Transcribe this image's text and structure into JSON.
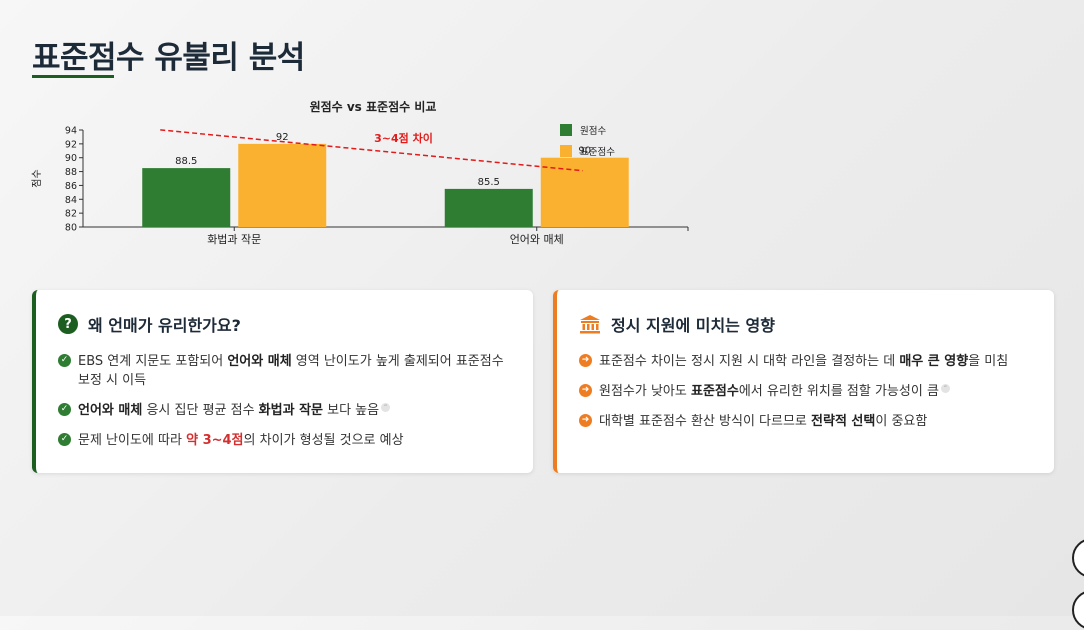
{
  "page": {
    "title": "표준점수 유불리 분석"
  },
  "chart_data": {
    "type": "bar",
    "title": "원점수 vs 표준점수 비교",
    "ylabel": "점수",
    "xlabel": "",
    "categories": [
      "화법과 작문",
      "언어와 매체"
    ],
    "series": [
      {
        "name": "원점수",
        "values": [
          88.5,
          85.5
        ],
        "color": "#2e7d32"
      },
      {
        "name": "표준점수",
        "values": [
          92,
          90
        ],
        "color": "#fbb130"
      }
    ],
    "ylim": [
      80,
      94
    ],
    "yticks": [
      80,
      82,
      84,
      86,
      88,
      90,
      92,
      94
    ],
    "value_labels": [
      "88.5",
      "92",
      "85.5",
      "90"
    ],
    "annotation": {
      "text": "3~4점 차이",
      "color": "#e31a1a"
    },
    "legend": "top-right",
    "grid": false
  },
  "cards": [
    {
      "title": "왜 언매가 유리한가요?",
      "icon": "question-circle-icon",
      "items": [
        {
          "parts": [
            {
              "t": "EBS 연계 지문도 포함되어 "
            },
            {
              "t": "언어와 매체",
              "b": true
            },
            {
              "t": " 영역 난이도가 높게 출제되어 표준점수 보정 시 이득"
            }
          ]
        },
        {
          "parts": [
            {
              "t": "언어와 매체",
              "b": true
            },
            {
              "t": " 응시 집단 평균 점수 "
            },
            {
              "t": "화법과 작문",
              "b": true
            },
            {
              "t": " 보다 높음"
            }
          ],
          "cite": true
        },
        {
          "parts": [
            {
              "t": "문제 난이도에 따라 "
            },
            {
              "t": "약 3~4점",
              "b": true,
              "red": true
            },
            {
              "t": "의 차이가 형성될 것으로 예상"
            }
          ]
        }
      ]
    },
    {
      "title": "정시 지원에 미치는 영향",
      "icon": "bank-icon",
      "items": [
        {
          "parts": [
            {
              "t": "표준점수 차이는 정시 지원 시 대학 라인을 결정하는 데 "
            },
            {
              "t": "매우 큰 영향",
              "b": true
            },
            {
              "t": "을 미침"
            }
          ]
        },
        {
          "parts": [
            {
              "t": "원점수가 낮아도 "
            },
            {
              "t": "표준점수",
              "b": true
            },
            {
              "t": "에서 유리한 위치를 점할 가능성이 큼"
            }
          ],
          "cite": true
        },
        {
          "parts": [
            {
              "t": "대학별 표준점수 환산 방식이 다르므로 "
            },
            {
              "t": "전략적 선택",
              "b": true
            },
            {
              "t": "이 중요함"
            }
          ]
        }
      ]
    }
  ],
  "colors": {
    "primary_green": "#1b5e20",
    "accent_orange": "#ee7d22",
    "highlight_red": "#d32f2f"
  }
}
